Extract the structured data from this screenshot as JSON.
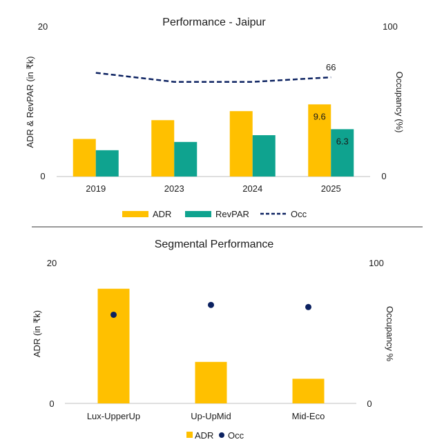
{
  "colors": {
    "adr": "#FFC000",
    "revpar": "#0FA38F",
    "occ": "#0B2160",
    "axis": "#BFBFBF",
    "divider": "#333333"
  },
  "chart_data": [
    {
      "type": "bar",
      "title": "Performance - Jaipur",
      "categories": [
        "2019",
        "2023",
        "2024",
        "2025"
      ],
      "ylabel": "ADR & RevPAR (in ₹k)",
      "y2label": "Occupancy (%)",
      "ylim": [
        0,
        20
      ],
      "y2lim": [
        0,
        100
      ],
      "yticks": [
        "0",
        "20"
      ],
      "y2ticks": [
        "0",
        "100"
      ],
      "series": [
        {
          "name": "ADR",
          "kind": "bar",
          "axis": "left",
          "values": [
            5.0,
            7.5,
            8.7,
            9.6
          ]
        },
        {
          "name": "RevPAR",
          "kind": "bar",
          "axis": "left",
          "values": [
            3.5,
            4.6,
            5.5,
            6.3
          ]
        },
        {
          "name": "Occ",
          "kind": "line",
          "style": "dashed",
          "axis": "right",
          "values": [
            69,
            63,
            63,
            66
          ]
        }
      ],
      "data_labels": {
        "ADR_2025": "9.6",
        "RevPAR_2025": "6.3",
        "Occ_2025": "66"
      },
      "legend": [
        "ADR",
        "RevPAR",
        "Occ"
      ],
      "legend_position": "bottom",
      "grid": false
    },
    {
      "type": "bar",
      "title": "Segmental Performance",
      "categories": [
        "Lux-UpperUp",
        "Up-UpMid",
        "Mid-Eco"
      ],
      "ylabel": "ADR (in ₹k)",
      "y2label": "Occupancy %",
      "ylim": [
        0,
        20
      ],
      "y2lim": [
        0,
        100
      ],
      "yticks": [
        "0",
        "20"
      ],
      "y2ticks": [
        "0",
        "100"
      ],
      "series": [
        {
          "name": "ADR",
          "kind": "bar",
          "axis": "left",
          "values": [
            16.3,
            5.9,
            3.5
          ]
        },
        {
          "name": "Occ",
          "kind": "scatter",
          "axis": "right",
          "values": [
            63,
            70,
            68.5
          ]
        }
      ],
      "legend": [
        "ADR",
        "Occ"
      ],
      "legend_position": "bottom",
      "grid": false
    }
  ]
}
